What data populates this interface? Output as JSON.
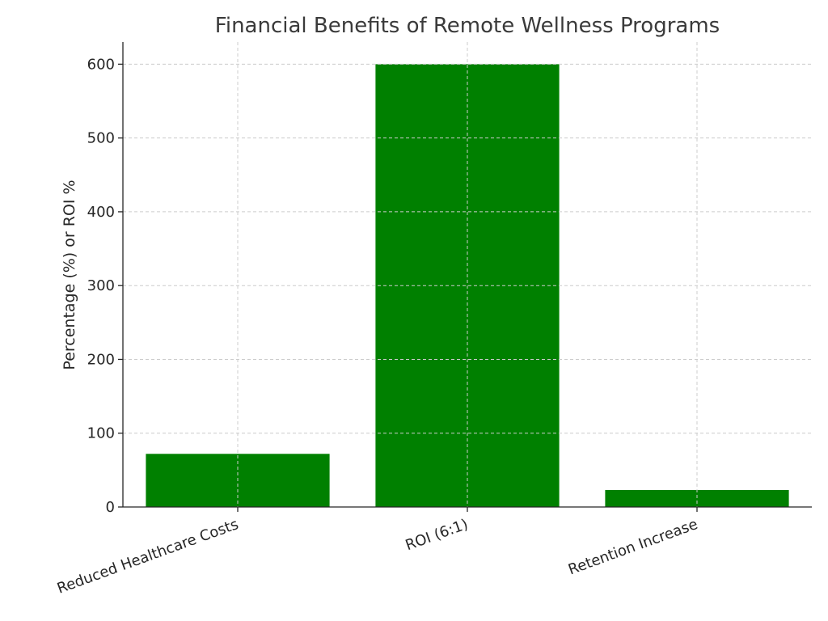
{
  "chart_data": {
    "type": "bar",
    "title": "Financial Benefits of Remote Wellness Programs",
    "xlabel": "",
    "ylabel": "Percentage (%) or ROI %",
    "categories": [
      "Reduced Healthcare Costs",
      "ROI (6:1)",
      "Retention Increase"
    ],
    "values": [
      72,
      600,
      23
    ],
    "ylim": [
      0,
      630
    ],
    "yticks": [
      0,
      100,
      200,
      300,
      400,
      500,
      600
    ],
    "bar_color": "#008000",
    "grid": true,
    "legend": "none"
  }
}
